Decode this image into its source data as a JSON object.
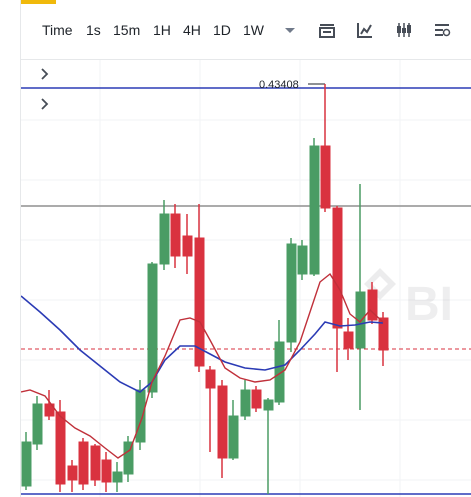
{
  "toolbar": {
    "intervals": [
      "Time",
      "1s",
      "15m",
      "1H",
      "4H",
      "1D",
      "1W"
    ],
    "icons": [
      "chevron-down-icon",
      "indicator-icon",
      "chart-line-icon",
      "candles-icon",
      "settings-icon"
    ]
  },
  "chart": {
    "high_label": "0.43408",
    "colors": {
      "up": "#4A9C64",
      "down": "#D9323F",
      "ma_fast": "#C0303A",
      "ma_slow": "#2B3BB5",
      "hline_blue": "#2B3BB5",
      "hline_gray": "#8F8F8F",
      "hline_dash": "#D9323F"
    },
    "watermark": "BI"
  }
}
